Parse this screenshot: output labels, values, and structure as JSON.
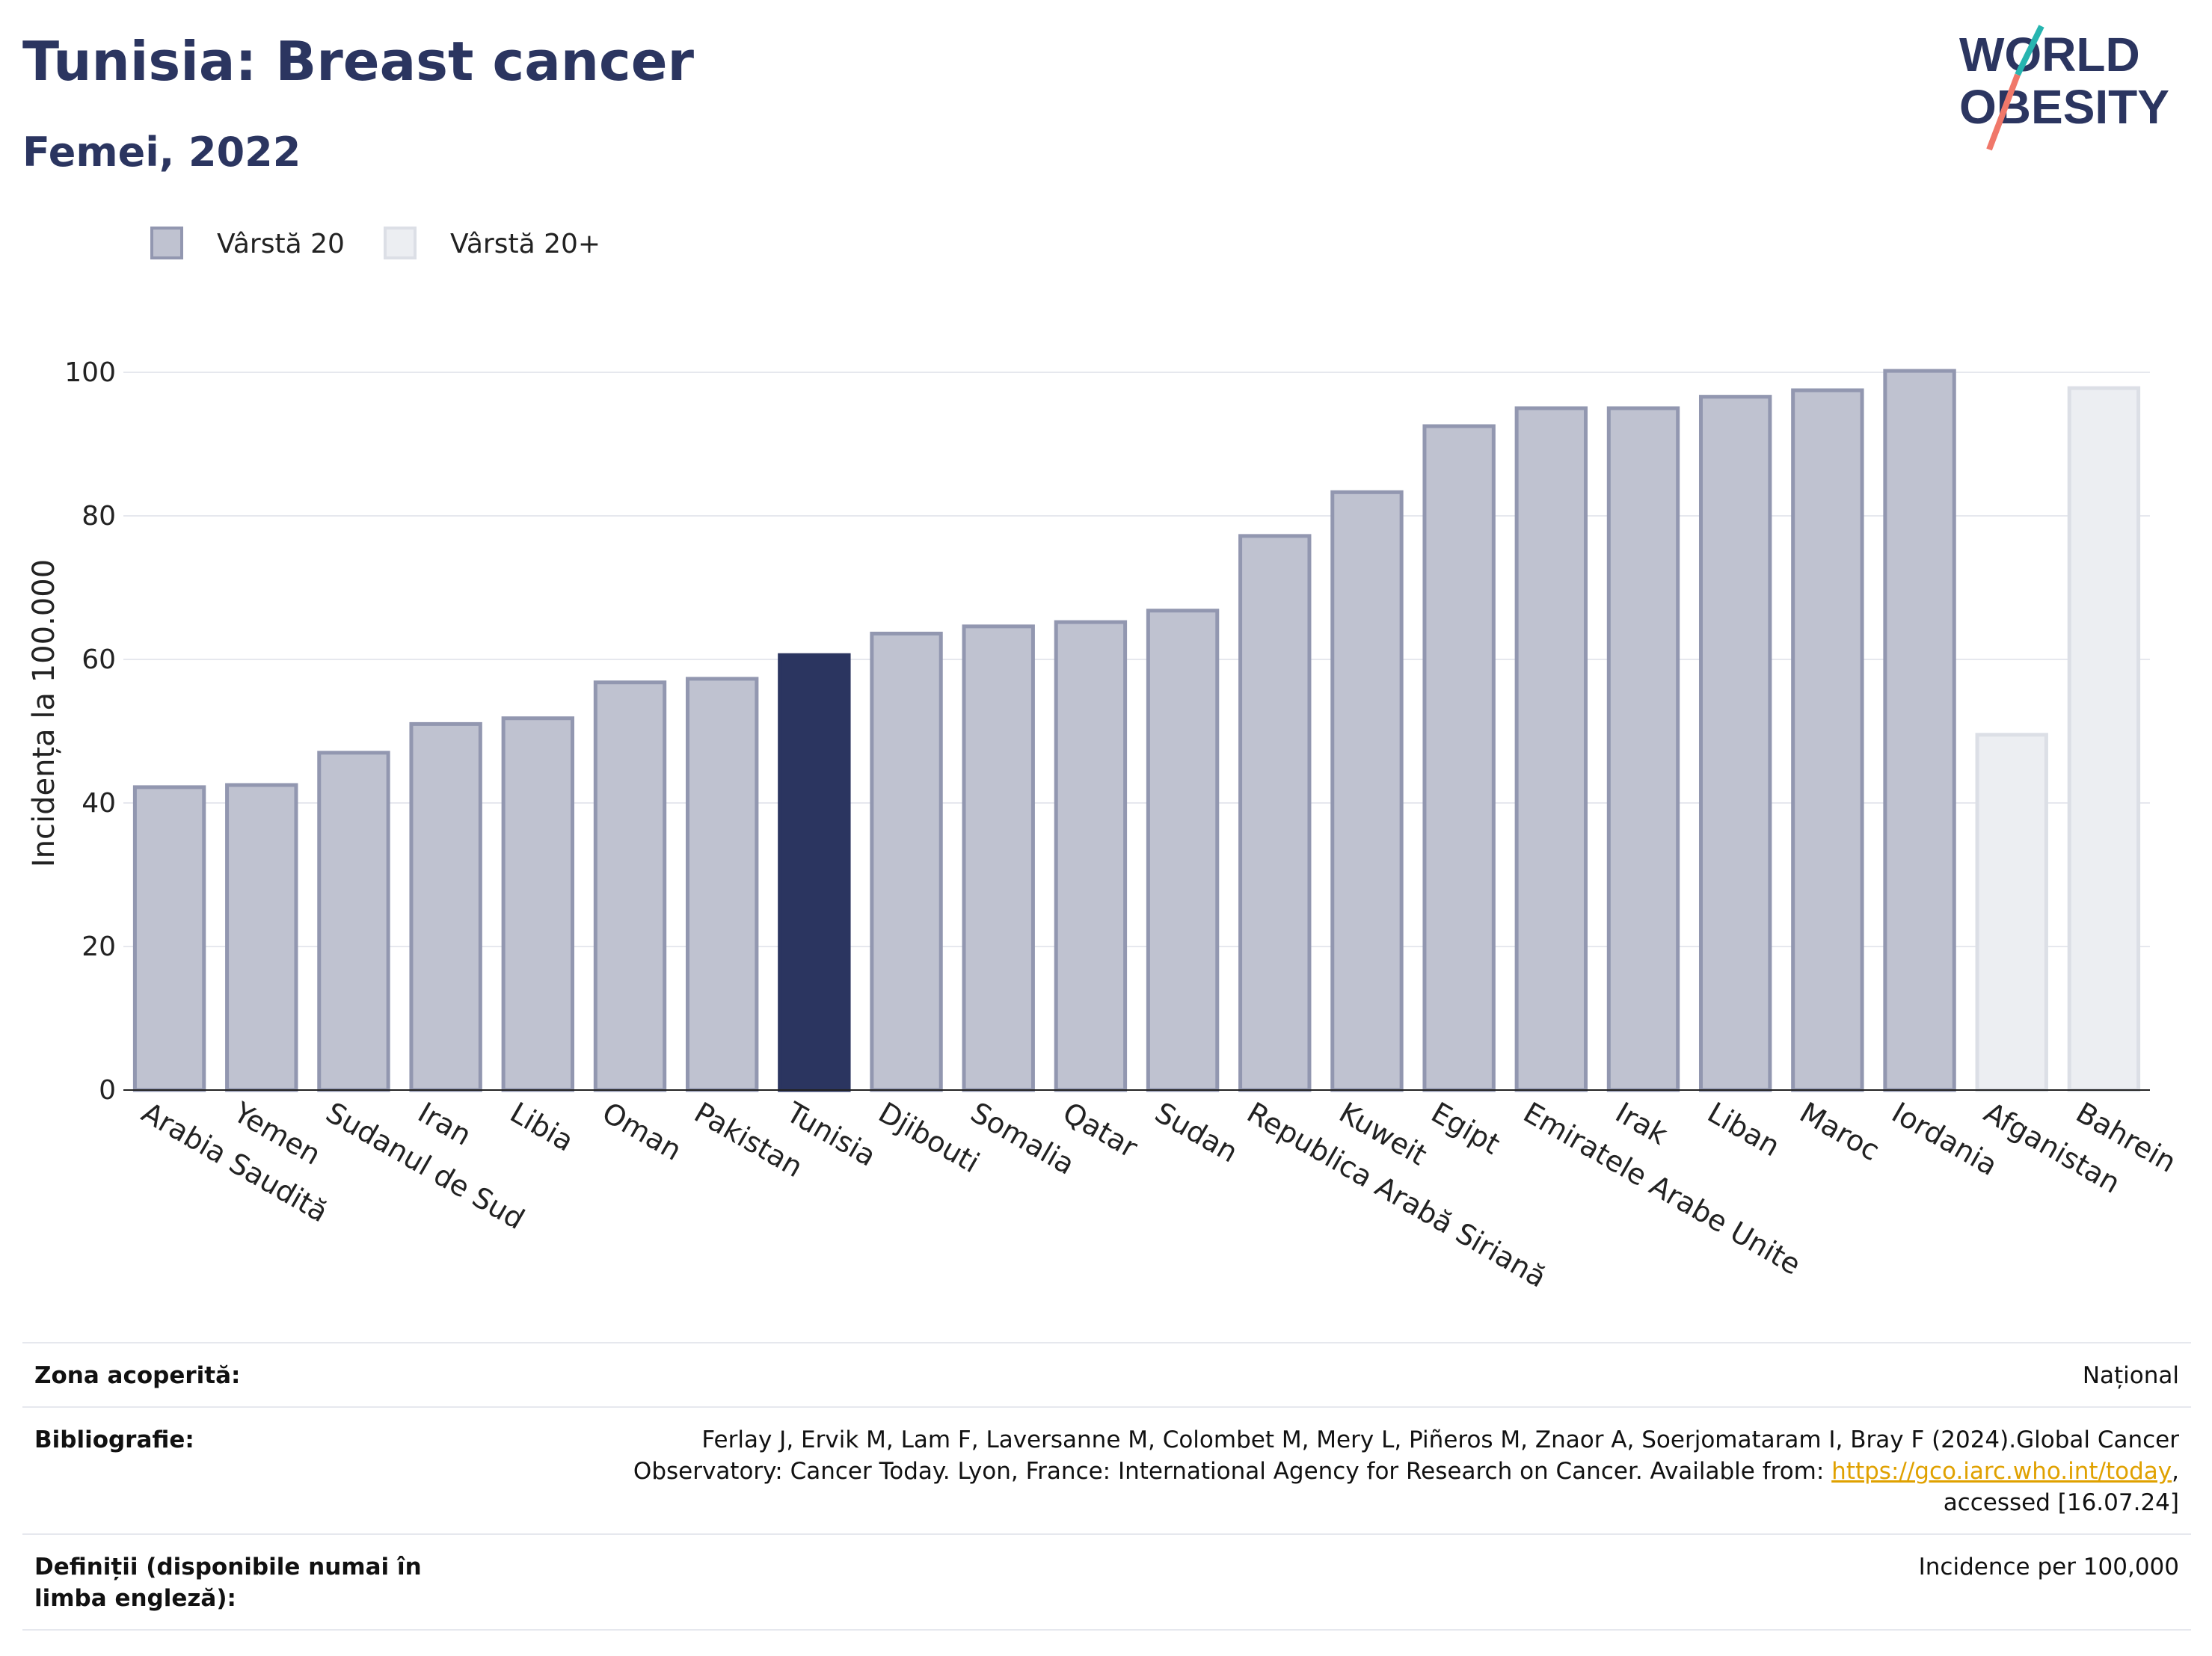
{
  "header": {
    "title": "Tunisia: Breast cancer",
    "subtitle": "Femei, 2022"
  },
  "logo": {
    "line1": "WORLD",
    "line2": "OBESITY"
  },
  "chart_data": {
    "type": "bar",
    "categories": [
      "Arabia Saudită",
      "Yemen",
      "Sudanul de Sud",
      "Iran",
      "Libia",
      "Oman",
      "Pakistan",
      "Tunisia",
      "Djibouti",
      "Somalia",
      "Qatar",
      "Sudan",
      "Republica Arabă Siriană",
      "Kuweit",
      "Egipt",
      "Emiratele Arabe Unite",
      "Irak",
      "Liban",
      "Maroc",
      "Iordania",
      "Afganistan",
      "Bahrein"
    ],
    "values": [
      42.2,
      42.5,
      47.0,
      51.0,
      51.8,
      56.8,
      57.3,
      60.6,
      63.6,
      64.6,
      65.2,
      66.8,
      77.2,
      83.3,
      92.5,
      95.0,
      95.0,
      96.6,
      97.5,
      100.2,
      49.5,
      97.8
    ],
    "groups": [
      "Vârstă 20",
      "Vârstă 20",
      "Vârstă 20",
      "Vârstă 20",
      "Vârstă 20",
      "Vârstă 20",
      "Vârstă 20",
      "Vârstă 20",
      "Vârstă 20",
      "Vârstă 20",
      "Vârstă 20",
      "Vârstă 20",
      "Vârstă 20",
      "Vârstă 20",
      "Vârstă 20",
      "Vârstă 20",
      "Vârstă 20",
      "Vârstă 20",
      "Vârstă 20",
      "Vârstă 20",
      "Vârstă 20+",
      "Vârstă 20+"
    ],
    "highlight": "Tunisia",
    "legend": [
      {
        "name": "Vârstă 20",
        "color": "#bfc2d0",
        "stroke": "#9297b0"
      },
      {
        "name": "Vârstă 20+",
        "color": "#eceef2",
        "stroke": "#dcdfe6"
      }
    ],
    "highlight_color": "#2b3560",
    "ylabel": "Incidența la 100.000",
    "xlabel": "",
    "ylim": [
      0,
      105
    ],
    "yticks": [
      0,
      20,
      40,
      60,
      80,
      100
    ],
    "grid": true,
    "legend_position": "top-left"
  },
  "footer": {
    "rows": [
      {
        "label": "Zona acoperită:",
        "value": "Național"
      },
      {
        "label": "Bibliografie:",
        "value_pre": "Ferlay J, Ervik M, Lam F, Laversanne M, Colombet M, Mery L, Piñeros M, Znaor A, Soerjomataram I, Bray F (2024).Global Cancer Observatory: Cancer Today. Lyon, France: International Agency for Research on Cancer. Available from: ",
        "link": "https://gco.iarc.who.int/today",
        "value_post": ", accessed [16.07.24]"
      },
      {
        "label": "Definiții (disponibile numai în limba engleză):",
        "value": "Incidence per 100,000"
      }
    ]
  }
}
